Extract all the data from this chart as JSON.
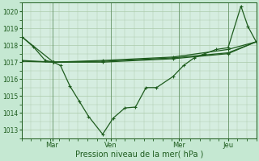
{
  "xlabel": "Pression niveau de la mer( hPa )",
  "bg_color": "#c5e8d2",
  "plot_bg_color": "#d5ede0",
  "line_color": "#1e5c1e",
  "grid_color": "#aacaaa",
  "ylim": [
    1012.5,
    1020.5
  ],
  "yticks": [
    1013,
    1014,
    1015,
    1016,
    1017,
    1018,
    1019,
    1020
  ],
  "xtick_labels": [
    "Mar",
    "Ven",
    "Mer",
    "Jeu"
  ],
  "xtick_positions": [
    0.13,
    0.38,
    0.67,
    0.88
  ],
  "vline_positions": [
    0.13,
    0.38,
    0.67,
    0.88
  ],
  "series": [
    {
      "x": [
        0.0,
        0.04,
        0.08,
        0.13,
        0.18,
        0.22,
        0.27,
        0.32,
        0.38,
        0.43,
        0.48,
        0.52,
        0.57,
        0.62,
        0.67,
        0.71,
        0.76,
        0.8,
        0.85,
        0.88,
        0.93,
        0.97,
        1.0
      ],
      "y": [
        1018.5,
        1017.9,
        1017.3,
        1017.1,
        1016.8,
        1015.8,
        1014.9,
        1014.0,
        1012.8,
        1013.5,
        1014.3,
        1014.4,
        1015.5,
        1015.5,
        1016.2,
        1016.8,
        1017.3,
        1017.5,
        1017.7,
        1017.9,
        1020.3,
        1019.1,
        1018.2
      ]
    },
    {
      "x": [
        0.0,
        0.13,
        0.38,
        0.67,
        0.88,
        1.0
      ],
      "y": [
        1017.1,
        1017.0,
        1017.1,
        1017.3,
        1017.7,
        1018.2
      ]
    },
    {
      "x": [
        0.0,
        0.13,
        0.38,
        0.67,
        0.88,
        1.0
      ],
      "y": [
        1017.0,
        1017.0,
        1017.15,
        1017.45,
        1017.75,
        1018.2
      ]
    },
    {
      "x": [
        0.0,
        0.13,
        0.38,
        0.67,
        0.88,
        1.0
      ],
      "y": [
        1018.5,
        1017.0,
        1017.0,
        1017.2,
        1017.5,
        1018.2
      ]
    }
  ],
  "marker_x": [
    0.0,
    0.04,
    0.08,
    0.13,
    0.18,
    0.22,
    0.27,
    0.32,
    0.38,
    0.43,
    0.48,
    0.52,
    0.57,
    0.62,
    0.67,
    0.71,
    0.76,
    0.8,
    0.85,
    0.88,
    0.93,
    0.97,
    1.0
  ],
  "marker_y": [
    1018.5,
    1017.9,
    1017.3,
    1017.1,
    1016.8,
    1015.8,
    1014.9,
    1014.0,
    1012.8,
    1013.5,
    1014.3,
    1014.4,
    1015.5,
    1015.5,
    1016.2,
    1016.8,
    1017.3,
    1017.5,
    1017.7,
    1017.9,
    1020.3,
    1019.1,
    1018.2
  ]
}
